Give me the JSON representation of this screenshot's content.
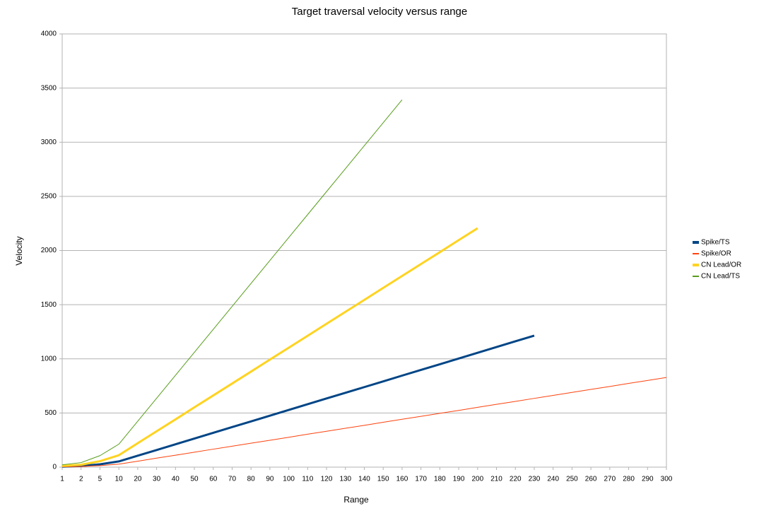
{
  "chart_data": {
    "type": "line",
    "title": "Target traversal velocity versus range",
    "x_label": "Range",
    "y_label": "Velocity",
    "categories": [
      1,
      2,
      5,
      10,
      20,
      30,
      40,
      50,
      60,
      70,
      80,
      90,
      100,
      110,
      120,
      130,
      140,
      150,
      160,
      170,
      180,
      190,
      200,
      210,
      220,
      230,
      240,
      250,
      260,
      270,
      280,
      290,
      300
    ],
    "series": [
      {
        "name": "Spike/TS",
        "color": "#004586",
        "width": 3,
        "values": [
          5,
          11,
          26,
          53,
          106,
          158,
          211,
          264,
          317,
          370,
          422,
          475,
          528,
          581,
          634,
          686,
          739,
          792,
          845,
          898,
          950,
          1003,
          1056,
          1109,
          1162,
          1214,
          null,
          null,
          null,
          null,
          null,
          null,
          null
        ]
      },
      {
        "name": "Spike/OR",
        "color": "#ff420e",
        "width": 1,
        "values": [
          3,
          6,
          14,
          28,
          55,
          83,
          110,
          138,
          166,
          193,
          221,
          248,
          276,
          304,
          331,
          359,
          386,
          414,
          442,
          469,
          497,
          524,
          552,
          580,
          607,
          635,
          662,
          690,
          718,
          745,
          773,
          800,
          828
        ]
      },
      {
        "name": "CN Lead/OR",
        "color": "#ffd320",
        "width": 3,
        "values": [
          11,
          22,
          55,
          110,
          221,
          331,
          441,
          552,
          662,
          772,
          882,
          993,
          1103,
          1213,
          1324,
          1434,
          1544,
          1655,
          1765,
          1875,
          1985,
          2096,
          2206,
          null,
          null,
          null,
          null,
          null,
          null,
          null,
          null,
          null,
          null
        ]
      },
      {
        "name": "CN Lead/TS",
        "color": "#579d1c",
        "width": 1,
        "values": [
          21,
          42,
          106,
          212,
          424,
          636,
          848,
          1060,
          1272,
          1484,
          1696,
          1908,
          2120,
          2332,
          2544,
          2756,
          2968,
          3180,
          3392,
          null,
          null,
          null,
          null,
          null,
          null,
          null,
          null,
          null,
          null,
          null,
          null,
          null,
          null
        ]
      }
    ],
    "ylim": [
      0,
      4000
    ],
    "yticks": [
      0,
      500,
      1000,
      1500,
      2000,
      2500,
      3000,
      3500,
      4000
    ],
    "grid": true,
    "legend": "right"
  }
}
